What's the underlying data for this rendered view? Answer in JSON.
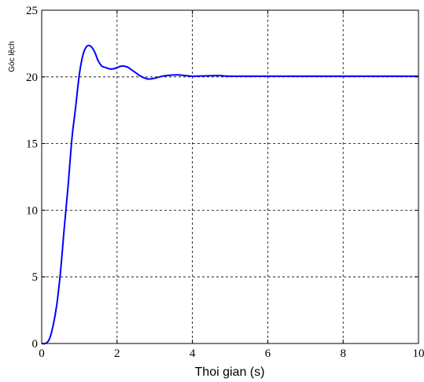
{
  "chart_data": {
    "type": "line",
    "xlabel": "Thoi gian (s)",
    "ylabel": "Góc lệch",
    "xlim": [
      0,
      10
    ],
    "ylim": [
      0,
      25
    ],
    "xticks": [
      0,
      2,
      4,
      6,
      8,
      10
    ],
    "yticks": [
      0,
      5,
      10,
      15,
      20,
      25
    ],
    "xtick_labels": [
      "0",
      "2",
      "4",
      "6",
      "8",
      "10"
    ],
    "ytick_labels": [
      "0",
      "5",
      "10",
      "15",
      "20",
      "25"
    ],
    "grid": true,
    "series": [
      {
        "color": "#0000ff",
        "x": [
          0,
          0.1,
          0.2,
          0.3,
          0.4,
          0.5,
          0.6,
          0.7,
          0.8,
          0.9,
          1.0,
          1.1,
          1.2,
          1.3,
          1.4,
          1.5,
          1.6,
          1.7,
          1.8,
          1.9,
          2.0,
          2.1,
          2.2,
          2.3,
          2.4,
          2.5,
          2.6,
          2.7,
          2.8,
          2.9,
          3.0,
          3.2,
          3.4,
          3.6,
          3.8,
          4.0,
          4.3,
          4.7,
          5.0,
          6.0,
          7.0,
          8.0,
          9.0,
          10.0
        ],
        "y": [
          0,
          0.0,
          0.3,
          1.3,
          2.9,
          5.4,
          8.7,
          11.8,
          15.3,
          17.7,
          20.2,
          21.7,
          22.3,
          22.3,
          21.9,
          21.2,
          20.8,
          20.7,
          20.6,
          20.6,
          20.7,
          20.8,
          20.8,
          20.7,
          20.5,
          20.3,
          20.1,
          19.95,
          19.85,
          19.85,
          19.9,
          20.05,
          20.12,
          20.15,
          20.1,
          20.05,
          20.07,
          20.1,
          20.05,
          20.05,
          20.05,
          20.05,
          20.05,
          20.05
        ]
      }
    ]
  }
}
